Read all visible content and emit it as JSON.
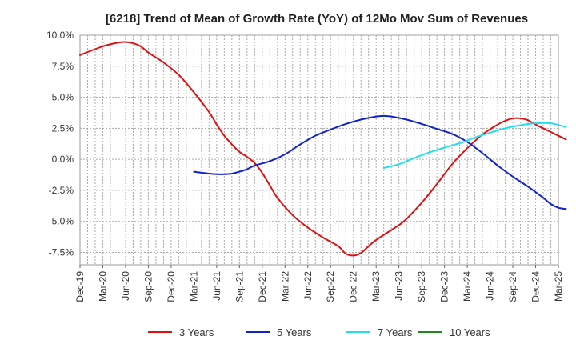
{
  "chart_data": {
    "type": "line",
    "title": "[6218]  Trend of Mean of Growth Rate (YoY) of 12Mo Mov Sum of Revenues",
    "xlabel": "",
    "ylabel": "",
    "ylim": [
      -8.5,
      10.0
    ],
    "y_ticks": [
      10.0,
      7.5,
      5.0,
      2.5,
      0.0,
      -2.5,
      -5.0,
      -7.5
    ],
    "y_tick_labels": [
      "10.0%",
      "7.5%",
      "5.0%",
      "2.5%",
      "0.0%",
      "-2.5%",
      "-5.0%",
      "-7.5%"
    ],
    "x_tick_labels": [
      "Dec-19",
      "Mar-20",
      "Jun-20",
      "Sep-20",
      "Dec-20",
      "Mar-21",
      "Jun-21",
      "Sep-21",
      "Dec-21",
      "Mar-22",
      "Jun-22",
      "Sep-22",
      "Dec-22",
      "Mar-23",
      "Jun-23",
      "Sep-23",
      "Dec-23",
      "Mar-24",
      "Jun-24",
      "Sep-24",
      "Dec-24",
      "Mar-25"
    ],
    "x_unit": "month index from Dec-19",
    "grid": true,
    "legend_position": "bottom",
    "series": [
      {
        "name": "3 Years",
        "color": "#dd1111",
        "points": [
          [
            0,
            8.4
          ],
          [
            3,
            9.1
          ],
          [
            5,
            9.4
          ],
          [
            6,
            9.45
          ],
          [
            7,
            9.35
          ],
          [
            8,
            9.1
          ],
          [
            9,
            8.6
          ],
          [
            11,
            7.8
          ],
          [
            13,
            6.8
          ],
          [
            15,
            5.4
          ],
          [
            17,
            3.8
          ],
          [
            18,
            2.8
          ],
          [
            19,
            1.9
          ],
          [
            20,
            1.2
          ],
          [
            21,
            0.6
          ],
          [
            22,
            0.2
          ],
          [
            23,
            -0.3
          ],
          [
            24,
            -1.1
          ],
          [
            25,
            -2.1
          ],
          [
            26,
            -3.1
          ],
          [
            28,
            -4.5
          ],
          [
            30,
            -5.5
          ],
          [
            32,
            -6.3
          ],
          [
            34,
            -7.0
          ],
          [
            35,
            -7.6
          ],
          [
            36,
            -7.75
          ],
          [
            37,
            -7.55
          ],
          [
            38,
            -7.0
          ],
          [
            39,
            -6.5
          ],
          [
            41,
            -5.7
          ],
          [
            42,
            -5.3
          ],
          [
            43,
            -4.8
          ],
          [
            45,
            -3.5
          ],
          [
            47,
            -2.0
          ],
          [
            49,
            -0.4
          ],
          [
            51,
            0.9
          ],
          [
            53,
            2.0
          ],
          [
            55,
            2.8
          ],
          [
            56,
            3.1
          ],
          [
            57,
            3.3
          ],
          [
            58,
            3.3
          ],
          [
            59,
            3.15
          ],
          [
            60,
            2.8
          ],
          [
            62,
            2.2
          ],
          [
            64,
            1.6
          ]
        ]
      },
      {
        "name": "5 Years",
        "color": "#1122cc",
        "points": [
          [
            15,
            -1.0
          ],
          [
            17,
            -1.15
          ],
          [
            18,
            -1.2
          ],
          [
            19,
            -1.2
          ],
          [
            20,
            -1.15
          ],
          [
            21,
            -1.0
          ],
          [
            22,
            -0.8
          ],
          [
            23,
            -0.5
          ],
          [
            25,
            -0.15
          ],
          [
            27,
            0.4
          ],
          [
            29,
            1.2
          ],
          [
            31,
            1.9
          ],
          [
            33,
            2.4
          ],
          [
            35,
            2.85
          ],
          [
            37,
            3.2
          ],
          [
            39,
            3.45
          ],
          [
            40,
            3.5
          ],
          [
            41,
            3.45
          ],
          [
            43,
            3.2
          ],
          [
            45,
            2.85
          ],
          [
            47,
            2.45
          ],
          [
            49,
            2.05
          ],
          [
            51,
            1.4
          ],
          [
            53,
            0.5
          ],
          [
            55,
            -0.5
          ],
          [
            57,
            -1.4
          ],
          [
            59,
            -2.2
          ],
          [
            61,
            -3.1
          ],
          [
            62,
            -3.6
          ],
          [
            63,
            -3.9
          ],
          [
            64,
            -4.0
          ]
        ]
      },
      {
        "name": "7 Years",
        "color": "#22ddee",
        "points": [
          [
            40,
            -0.7
          ],
          [
            42,
            -0.4
          ],
          [
            44,
            0.1
          ],
          [
            46,
            0.55
          ],
          [
            48,
            0.95
          ],
          [
            50,
            1.3
          ],
          [
            52,
            1.75
          ],
          [
            54,
            2.15
          ],
          [
            56,
            2.5
          ],
          [
            58,
            2.75
          ],
          [
            60,
            2.9
          ],
          [
            62,
            2.9
          ],
          [
            64,
            2.6
          ]
        ]
      },
      {
        "name": "10 Years",
        "color": "#228822",
        "points": []
      }
    ]
  }
}
